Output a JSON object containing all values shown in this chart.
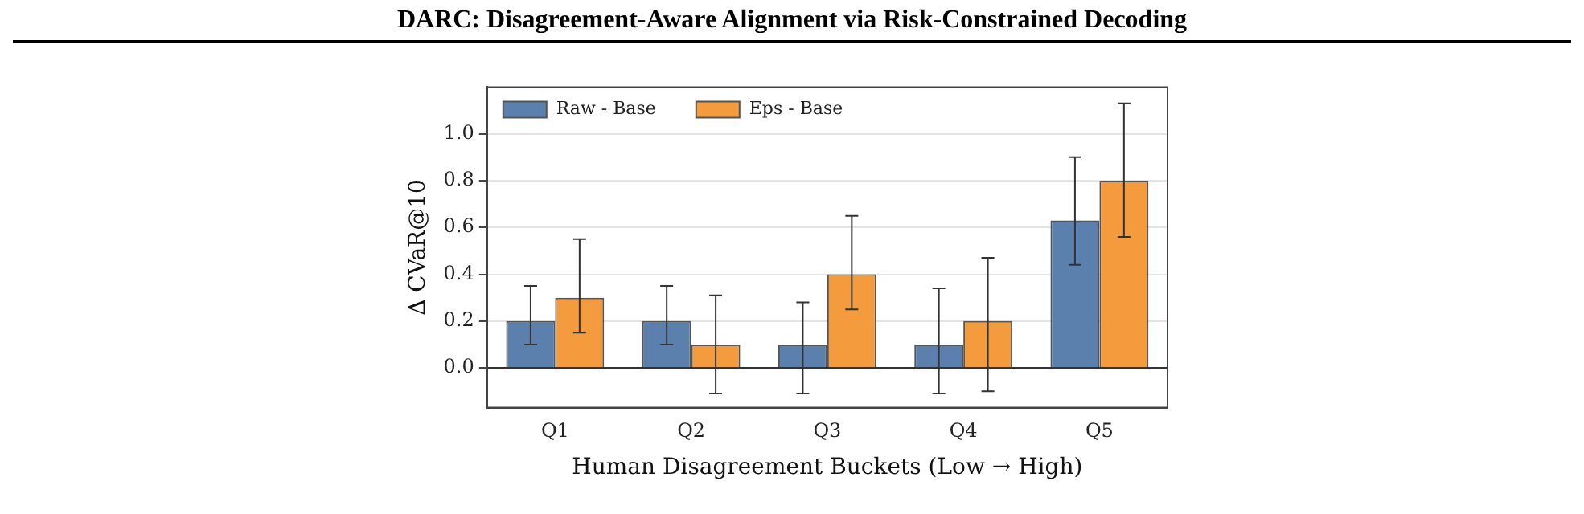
{
  "chart_data": {
    "type": "bar",
    "title": "DARC: Disagreement-Aware Alignment via Risk-Constrained Decoding",
    "xlabel": "Human Disagreement Buckets (Low → High)",
    "ylabel": "Δ CVaR@10",
    "categories": [
      "Q1",
      "Q2",
      "Q3",
      "Q4",
      "Q5"
    ],
    "series": [
      {
        "name": "Raw - Base",
        "color": "#5b80ad",
        "values": [
          0.2,
          0.2,
          0.1,
          0.1,
          0.63
        ],
        "errors": [
          [
            0.1,
            0.35
          ],
          [
            0.1,
            0.35
          ],
          [
            -0.11,
            0.28
          ],
          [
            -0.11,
            0.34
          ],
          [
            0.44,
            0.9
          ]
        ]
      },
      {
        "name": "Eps - Base",
        "color": "#f39b3d",
        "values": [
          0.3,
          0.1,
          0.4,
          0.2,
          0.8
        ],
        "errors": [
          [
            0.15,
            0.55
          ],
          [
            -0.11,
            0.31
          ],
          [
            0.25,
            0.65
          ],
          [
            -0.1,
            0.47
          ],
          [
            0.56,
            1.13
          ]
        ]
      }
    ],
    "ylim": [
      -0.17,
      1.2
    ],
    "yticks": [
      {
        "value": 0,
        "label": "0.0"
      },
      0.2,
      0.4,
      0.6,
      0.8,
      {
        "value": 1,
        "label": "1.0"
      }
    ],
    "ref_lines": [
      {
        "axis": "y",
        "value": 0,
        "color": "#333333"
      }
    ],
    "grid": "y",
    "legend": "top left"
  }
}
